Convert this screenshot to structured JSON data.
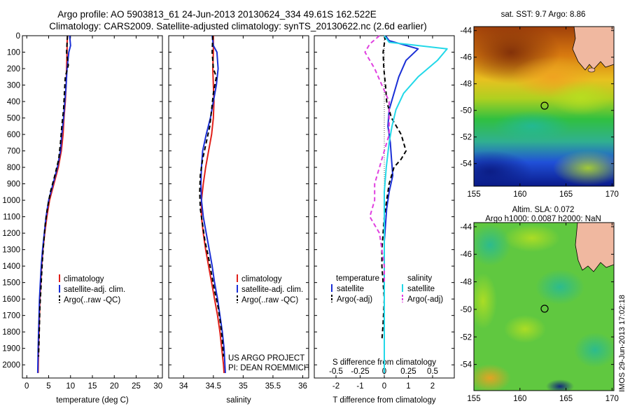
{
  "header": {
    "line1": "Argo profile: AO 5903813_61 24-Jun-2013 20130624_334 49.61S 162.522E",
    "line2": "Climatology: CARS2009. Satellite-adjusted climatology: synTS_20130622.nc (2.6d earlier)"
  },
  "colors": {
    "climatology": "#e0201a",
    "satellite": "#1a2fd6",
    "argo": "#000000",
    "sal_sat": "#22d8e8",
    "sal_argo": "#e040e0"
  },
  "legend_profile": [
    "climatology",
    "satellite-adj. clim.",
    "Argo(..raw -QC)"
  ],
  "legend_diff": {
    "temp_head": "temperature",
    "sal_head": "salinity",
    "items": [
      "satellite",
      "Argo(-adj)",
      "satellite",
      "Argo(-adj)"
    ]
  },
  "project": {
    "line1": "US ARGO PROJECT",
    "line2": "PI: DEAN ROEMMICH"
  },
  "maps": {
    "sst_title": "sat. SST: 9.7 Argo: 8.86",
    "sla_title1": "Altim. SLA: 0.072",
    "sla_title2": "Argo h1000: 0.0087 h2000: NaN",
    "stamp": "IMOS 29-Jun-2013 17:02:18",
    "lat_ticks": [
      "-44",
      "-46",
      "-48",
      "-50",
      "-52",
      "-54"
    ],
    "lon_ticks": [
      "155",
      "160",
      "165",
      "170"
    ]
  },
  "chart_data": [
    {
      "type": "line",
      "xlabel": "temperature (deg C)",
      "ylabel": "",
      "xlim": [
        -1,
        31
      ],
      "ylim": [
        2080,
        0
      ],
      "ytick_step": 100,
      "xticks": [
        0,
        5,
        10,
        15,
        20,
        25,
        30
      ],
      "series": [
        {
          "name": "climatology",
          "color": "#e0201a",
          "x": [
            9.3,
            9.2,
            9.2,
            9.1,
            9.0,
            8.8,
            8.5,
            8.3,
            7.9,
            7.2,
            6.2,
            5.2,
            4.6,
            4.1,
            3.7,
            3.4,
            3.2,
            3.0,
            2.9,
            2.8,
            2.7,
            2.6
          ],
          "y": [
            0,
            50,
            100,
            200,
            300,
            400,
            500,
            600,
            700,
            800,
            900,
            1000,
            1100,
            1200,
            1300,
            1400,
            1500,
            1600,
            1700,
            1800,
            1900,
            2050
          ]
        },
        {
          "name": "satellite-adj. clim.",
          "color": "#1a2fd6",
          "x": [
            9.8,
            10.0,
            9.6,
            9.2,
            9.0,
            8.7,
            8.4,
            8.0,
            7.7,
            7.0,
            6.0,
            5.0,
            4.4,
            4.0,
            3.6,
            3.3,
            3.1,
            2.9,
            2.8,
            2.7,
            2.6,
            2.5
          ],
          "y": [
            0,
            60,
            100,
            200,
            300,
            400,
            500,
            600,
            700,
            800,
            900,
            1000,
            1100,
            1200,
            1300,
            1400,
            1500,
            1600,
            1700,
            1800,
            1900,
            2050
          ]
        },
        {
          "name": "Argo(..raw -QC)",
          "color": "#000000",
          "dashed": true,
          "x": [
            9.3,
            9.1,
            9.5,
            8.8,
            8.6,
            8.4,
            8.0,
            7.7,
            7.3,
            6.4,
            5.4,
            4.7,
            4.2,
            3.9,
            3.6,
            3.4,
            3.2,
            3.0,
            2.9,
            2.8,
            2.7
          ],
          "y": [
            0,
            100,
            180,
            250,
            350,
            450,
            550,
            650,
            750,
            850,
            950,
            1050,
            1150,
            1250,
            1350,
            1450,
            1550,
            1650,
            1750,
            1850,
            1950
          ]
        }
      ]
    },
    {
      "type": "line",
      "xlabel": "salinity",
      "ylabel": "",
      "xlim": [
        33.75,
        36.1
      ],
      "ylim": [
        2080,
        0
      ],
      "xticks": [
        34,
        34.5,
        35,
        35.5,
        36
      ],
      "series": [
        {
          "name": "climatology",
          "color": "#e0201a",
          "x": [
            34.5,
            34.5,
            34.49,
            34.5,
            34.51,
            34.5,
            34.47,
            34.42,
            34.37,
            34.33,
            34.3,
            34.3,
            34.33,
            34.37,
            34.42,
            34.47,
            34.52,
            34.57,
            34.61,
            34.64,
            34.67,
            34.68
          ],
          "y": [
            0,
            100,
            200,
            300,
            400,
            500,
            600,
            700,
            800,
            900,
            1000,
            1100,
            1200,
            1300,
            1400,
            1500,
            1600,
            1700,
            1800,
            1900,
            2000,
            2050
          ]
        },
        {
          "name": "satellite-adj. clim.",
          "color": "#1a2fd6",
          "x": [
            34.48,
            34.5,
            34.56,
            34.58,
            34.55,
            34.5,
            34.45,
            34.38,
            34.32,
            34.3,
            34.29,
            34.3,
            34.33,
            34.38,
            34.43,
            34.48,
            34.52,
            34.57,
            34.61,
            34.65,
            34.68,
            34.7
          ],
          "y": [
            0,
            60,
            100,
            200,
            300,
            400,
            500,
            600,
            700,
            800,
            900,
            1000,
            1100,
            1200,
            1300,
            1400,
            1500,
            1600,
            1700,
            1800,
            1900,
            2050
          ]
        },
        {
          "name": "Argo(..raw -QC)",
          "color": "#000000",
          "dashed": true,
          "x": [
            34.49,
            34.48,
            34.5,
            34.55,
            34.5,
            34.47,
            34.44,
            34.38,
            34.32,
            34.28,
            34.27,
            34.28,
            34.32,
            34.36,
            34.42,
            34.47,
            34.52,
            34.58,
            34.62,
            34.65,
            34.67
          ],
          "y": [
            0,
            100,
            200,
            250,
            350,
            450,
            550,
            650,
            750,
            850,
            950,
            1050,
            1150,
            1250,
            1350,
            1450,
            1550,
            1650,
            1750,
            1850,
            1950
          ]
        }
      ]
    },
    {
      "type": "line",
      "xlabel": "T difference from climatology",
      "xlabel_top": "S difference from climatology",
      "xlim": [
        -2.9,
        2.9
      ],
      "ylim": [
        2080,
        0
      ],
      "xticks": [
        -2,
        -1,
        0,
        1,
        2
      ],
      "xticks_sal": [
        "-0.5",
        "-0.25",
        "0",
        "0.25",
        "0.5"
      ],
      "series": [
        {
          "name": "satellite",
          "group": "temperature",
          "color": "#1a2fd6",
          "x": [
            0.05,
            0.2,
            1.4,
            0.9,
            0.6,
            0.4,
            0.2,
            0.15,
            0.25,
            0.3,
            0.35,
            0.2,
            0.1,
            0.05,
            0.0,
            0.0,
            0.0,
            0.0,
            0.0,
            0.0,
            0.0
          ],
          "y": [
            0,
            30,
            80,
            150,
            250,
            350,
            450,
            550,
            650,
            750,
            850,
            950,
            1050,
            1150,
            1250,
            1350,
            1450,
            1600,
            1750,
            1900,
            2050
          ]
        },
        {
          "name": "Argo(-adj)",
          "group": "temperature",
          "color": "#000000",
          "dashed": true,
          "x": [
            0.05,
            0.0,
            -0.05,
            -0.02,
            0.05,
            0.1,
            0.3,
            0.7,
            0.9,
            0.7,
            0.4,
            0.2,
            0.1,
            0.0,
            -0.05,
            -0.1,
            -0.1,
            -0.05,
            0.0,
            -0.05,
            -0.1
          ],
          "y": [
            0,
            50,
            100,
            200,
            300,
            400,
            500,
            600,
            700,
            750,
            800,
            900,
            1000,
            1100,
            1200,
            1300,
            1400,
            1500,
            1600,
            1750,
            1850
          ]
        },
        {
          "name": "satellite",
          "group": "salinity",
          "color": "#22d8e8",
          "x": [
            0.0,
            0.05,
            0.65,
            0.55,
            0.35,
            0.2,
            0.12,
            0.08,
            0.05,
            0.02,
            0.0,
            0.0,
            0.0,
            0.0,
            0.0,
            0.0,
            0.0,
            0.0
          ],
          "y": [
            0,
            40,
            80,
            150,
            250,
            350,
            450,
            550,
            650,
            800,
            950,
            1100,
            1250,
            1400,
            1550,
            1700,
            1850,
            2050
          ]
        },
        {
          "name": "Argo(-adj)",
          "group": "salinity",
          "color": "#e040e0",
          "dashed": true,
          "x": [
            -0.05,
            -0.15,
            -0.2,
            -0.1,
            0.05,
            0.05,
            0.0,
            -0.05,
            -0.1,
            -0.1,
            -0.15,
            -0.05,
            0.0,
            0.0
          ],
          "y": [
            0,
            50,
            100,
            200,
            400,
            600,
            700,
            800,
            900,
            1000,
            1100,
            1200,
            1400,
            1500
          ]
        }
      ]
    }
  ]
}
